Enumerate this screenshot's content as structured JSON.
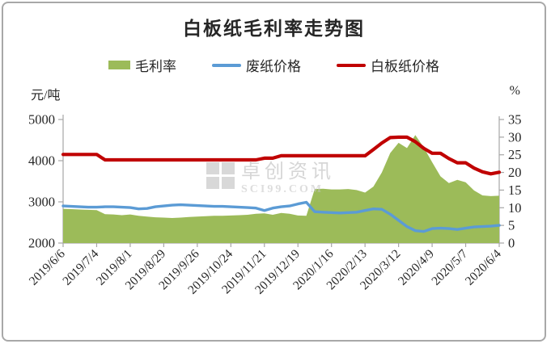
{
  "title": "白板纸毛利率走势图",
  "units": {
    "left": "元/吨",
    "right": "%"
  },
  "watermark": {
    "line1": "卓创资讯",
    "line2": "SCI99.COM"
  },
  "legend": {
    "items": [
      {
        "label": "毛利率",
        "type": "area",
        "color": "#9CBB59"
      },
      {
        "label": "废纸价格",
        "type": "line",
        "color": "#5B9BD5"
      },
      {
        "label": "白板纸价格",
        "type": "line",
        "color": "#C00000"
      }
    ]
  },
  "chart_data": {
    "type": "area",
    "title": "白板纸毛利率走势图",
    "grid": false,
    "legend_position": "top",
    "x": [
      "2019/6/6",
      "2019/6/13",
      "2019/6/20",
      "2019/6/27",
      "2019/7/4",
      "2019/7/11",
      "2019/7/18",
      "2019/7/25",
      "2019/8/1",
      "2019/8/8",
      "2019/8/15",
      "2019/8/22",
      "2019/8/29",
      "2019/9/5",
      "2019/9/12",
      "2019/9/19",
      "2019/9/26",
      "2019/10/3",
      "2019/10/10",
      "2019/10/17",
      "2019/10/24",
      "2019/10/31",
      "2019/11/7",
      "2019/11/14",
      "2019/11/21",
      "2019/11/28",
      "2019/12/5",
      "2019/12/12",
      "2019/12/19",
      "2019/12/26",
      "2020/1/2",
      "2020/1/9",
      "2020/1/16",
      "2020/1/23",
      "2020/1/30",
      "2020/2/6",
      "2020/2/13",
      "2020/2/20",
      "2020/2/27",
      "2020/3/5",
      "2020/3/12",
      "2020/3/19",
      "2020/3/26",
      "2020/4/2",
      "2020/4/9",
      "2020/4/16",
      "2020/4/23",
      "2020/4/30",
      "2020/5/7",
      "2020/5/14",
      "2020/5/21",
      "2020/5/28",
      "2020/6/4"
    ],
    "x_tick_every": 4,
    "left_axis": {
      "label": "元/吨",
      "min": 2000,
      "max": 5000,
      "ticks": [
        5000,
        4000,
        3000,
        2000
      ]
    },
    "right_axis": {
      "label": "%",
      "min": 0,
      "max": 35,
      "ticks": [
        35,
        30,
        25,
        20,
        15,
        10,
        5,
        0
      ]
    },
    "series": [
      {
        "name": "毛利率",
        "axis": "right",
        "type": "area",
        "color": "#9CBB59",
        "values": [
          9.7,
          9.6,
          9.5,
          9.4,
          9.3,
          8.2,
          8.1,
          7.9,
          8.1,
          7.7,
          7.5,
          7.3,
          7.2,
          7.1,
          7.2,
          7.4,
          7.5,
          7.6,
          7.7,
          7.7,
          7.8,
          7.9,
          8.0,
          8.3,
          8.4,
          8.0,
          8.5,
          8.3,
          7.8,
          7.7,
          15.3,
          15.4,
          15.2,
          15.2,
          15.3,
          15.0,
          14.3,
          16.0,
          20.0,
          25.5,
          28.4,
          26.9,
          30.6,
          27.1,
          22.9,
          18.9,
          17.0,
          17.9,
          17.2,
          14.9,
          13.5,
          13.3,
          13.4
        ]
      },
      {
        "name": "废纸价格",
        "axis": "left",
        "type": "line",
        "color": "#5B9BD5",
        "values": [
          2900,
          2890,
          2880,
          2870,
          2870,
          2880,
          2880,
          2870,
          2860,
          2830,
          2840,
          2880,
          2900,
          2920,
          2930,
          2920,
          2910,
          2900,
          2890,
          2890,
          2880,
          2870,
          2860,
          2850,
          2790,
          2850,
          2880,
          2900,
          2950,
          2990,
          2760,
          2750,
          2740,
          2730,
          2740,
          2750,
          2790,
          2830,
          2820,
          2700,
          2550,
          2400,
          2300,
          2280,
          2350,
          2360,
          2350,
          2330,
          2360,
          2390,
          2400,
          2410,
          2430
        ]
      },
      {
        "name": "白板纸价格",
        "axis": "left",
        "type": "line",
        "color": "#C00000",
        "values": [
          4150,
          4150,
          4150,
          4150,
          4150,
          4020,
          4020,
          4020,
          4020,
          4020,
          4020,
          4020,
          4020,
          4020,
          4020,
          4020,
          4020,
          4020,
          4020,
          4020,
          4020,
          4020,
          4020,
          4020,
          4060,
          4060,
          4120,
          4120,
          4120,
          4120,
          4120,
          4120,
          4120,
          4120,
          4120,
          4120,
          4120,
          4270,
          4430,
          4560,
          4570,
          4570,
          4460,
          4300,
          4180,
          4180,
          4050,
          3950,
          3950,
          3820,
          3730,
          3680,
          3720
        ]
      }
    ]
  }
}
